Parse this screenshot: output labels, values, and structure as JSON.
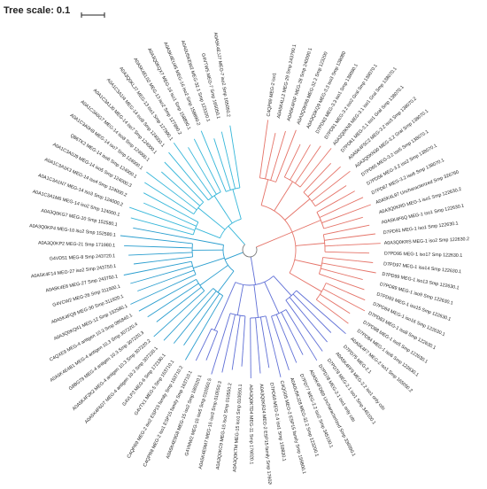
{
  "scale": {
    "label": "Tree scale: 0.1"
  },
  "colors": {
    "red": "#e57368",
    "blue": "#5f6fd6",
    "cyan": "#35b6d9",
    "teal": "#2a9ecf",
    "light": "#8fd3ea",
    "root": "#777777",
    "text": "#222222"
  },
  "clades": [
    {
      "color": "red",
      "leaves": [
        "C4QP89 MEG-2 iso1",
        "A0A5K4LL2 MEG-29 Smp 243790.1",
        "A0A5K4F0F MEG-28 Smp 240090.1",
        "A0A3Q0KR6 MEG-32.2 Smp 123200",
        "A0A3Q0KQ9 MEG-3.3 iso3 Smp 138080",
        "D7PD63 MEG-3.3 iso1 Smp 138080.1",
        "D7PD81 MEG-3.2 iso2 Gral Smp 138070.1",
        "A0A3Q0KN8 MEG-3.1 iso1 Gral Smp 138070.1",
        "D7PD61 MEG-3.1 iso1 Gral Smp 138070.1",
        "A0A5K4F5C2 MEG-3.2 iso3 Smp 138070.2",
        "A0A3Q0KN30 MEG-3.2 Gral Smp 138070.1",
        "D7PD65 MEG-3.2 iso5 Smp 138070.1",
        "D7PD56 MEG-3.2 iso2 Smp 138070.1",
        "D7PD67 MEG-3.2 iso6 Smp 138070.1",
        "A0A5K4L97 Uncharacterized Smp 326760",
        "A0A3Q0KRD MEG-1 iso1 Smp 122630.2",
        "A0A5K4F6Q MEG-1 iso1 Smp 122630.1",
        "D7PD91 MEG-1 iso1 Smp 122630.1",
        "A0A3Q0KRS MEG-1 iso2 Smp 122630.2",
        "D7PD95 MEG-1 iso17 Smp 122630.1",
        "D7PD97 MEG-1 iso14 Smp 122630.1",
        "D7PD99 MEG-1 iso13 Smp 122630.1",
        "D7PD89 MEG-1 iso9 Smp 122630.1",
        "D7PD93 MEG-1 iso15 Smp 122630.1",
        "D7PD84 MEG-1 iso16 Smp 122630.1",
        "D7PD83 MEG-1 iso8 Smp 122630.1",
        "D7PD88 MEG-1 iso5 Smp 122630.1",
        "D7PD84 MEG-1 iso6 Smp 122630.1"
      ]
    },
    {
      "color": "blue",
      "leaves": [
        "A0A5K4F7 MEG-2 iso1 Smp 165050.2",
        "D7PD75 MEG-2.1",
        "A0A5K4FF9 MEG-2.2 iso1 only cds",
        "D7PD78 MEG-2.1 iso1 Smp 345100.1",
        "D7PD78 MEG-2.1 iso1 only cds",
        "A0A5K4FDB9 Uncharacterized Smp 336990.1",
        "D7PD77 MEG-2.2 iso2 Smp 345100.1",
        "A0A0U5KJ28 MEG-32.2 Smp 123200.1",
        "C4QG05 MEG-2 ESP15 family Smp 159800.1",
        "D7PD69 MEG-2.4 iso1 Smp 159830.1",
        "A0A3Q0KR24 MEG-2 ESP15 family Smp 176020.1",
        "A0A3Q0KTD4 MEG-11 Smp 176020.1",
        "A0A3Q0KTM MEG-15 iso1 Smp 010550.1",
        "A0A3Q0KC9 MEG-15 iso2 Smp 010550.2",
        "A0A5K4E9M7 MEG-15 iso3 Smp 010550.3",
        "G4VMW2 MEG-15 iso5 Smp 010550.5",
        "A0A5K4E9G8 MEG-15 iso2 Smp 180320.1",
        "C4QPR8 MEG-2 iso1 ESP15 family Smp 163710.1"
      ]
    },
    {
      "color": "teal",
      "leaves": [
        "C4QPR9 MEG-2 iso2 ESP15 family Smp 163710.2",
        "G4VTX1 MEG-5 Smp 163710.1",
        "G4VLP3 MEG-6 Smp 172180.1",
        "A0A5K4F6D7 MEG-4 antigen 10.3 Smp 307220.1",
        "A0A5K4F2K2 MEG-4 antigen 10.3 Smp 307220.2",
        "G9BG79 MEG-4 antigen 10.3 Smp 307220.3",
        "A0A5K4E4B1 MEG-4 antigen 10.3 Smp 307220.4",
        "C4QXE9 MEG-4 antigen 10.3 Smp 085840.1",
        "A0A3Q0KQ41 MEG-12 Smp 152580.1",
        "A0A5K4FQ8 MEG-30 Smp 311920.1",
        "G4VCW2 MEG-26 Smp 311900.1",
        "A0A5K4E8 MEG-27 Smp 243750.1",
        "A0A5K4F14 MEG-27 iso2 Smp 243750.1",
        "G4VD51 MEG-8 Smp 243720.1",
        "A0A3Q0KP2 MEG-21 Smp 171980.1",
        "A0A3Q0KP4 MEG-10 iso2 Smp 152580.1",
        "A0A3Q0KG7 MEG-10 Smp 152580.1"
      ]
    },
    {
      "color": "cyan",
      "leaves": [
        "A0A1C3A1M6 MEG-14 iso2 Smp 124000.1",
        "A0A1C3A1N7 MEG-14 iso3 Smp 124000.2",
        "A0A1C3A1K3 MEG-14 iso4 Smp 124000.2",
        "A0A1C3A0J9 MEG-14 iso5 Smp 124000.3",
        "Q86TK2 MEG-14 iso6 Smp 124000.1",
        "A0A1C3A0H8 MEG-14 iso7 Smp 124000.1",
        "A0A1C3A0G7 MEG-14 iso8 Smp 124000.1",
        "A0A1C3A1J0 MEG-14 iso7 Smp 124000.1",
        "A0A1C3A1I4 MEG-14 iso9 Smp 124000.1",
        "A0A3Q0KLJ7 MEG-13 iso1 Smp 127990.1",
        "A0A5K4EL02 MEG-13 iso2 Smp 127990.2",
        "A0A3Q0KQX7 MEG-16 iso1 Smp 158890.1",
        "A0A5K4EU45 MEG-16 iso2 Smp 158890.2",
        "A0A0U5KEW2 MEG-32.1 Smp 123100.1",
        "G4VTW5 MEG-7 Smp 165050.1",
        "A0A5K4EJJ7 MEG-7 iso2 Smp 165050.2"
      ]
    }
  ]
}
